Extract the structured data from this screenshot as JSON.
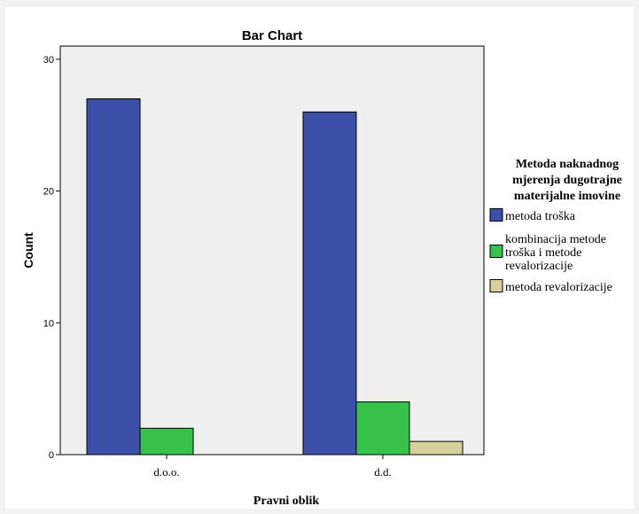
{
  "chart_data": {
    "type": "bar",
    "title": "Bar Chart",
    "xlabel": "Pravni oblik",
    "ylabel": "Count",
    "categories": [
      "d.o.o.",
      "d.d."
    ],
    "ylim": [
      0,
      31
    ],
    "yticks": [
      0,
      10,
      20,
      30
    ],
    "grid": false,
    "legend_position": "right",
    "legend_title": [
      "Metoda naknadnog",
      "mjerenja dugotrajne",
      "materijalne imovine"
    ],
    "series": [
      {
        "name": "metoda troška",
        "name_lines": [
          "metoda troška"
        ],
        "color": "#3c50aa",
        "values": [
          27,
          26
        ]
      },
      {
        "name": "kombinacija metode troška i metode revalorizacije",
        "name_lines": [
          "kombinacija metode",
          "troška i metode",
          "revalorizacije"
        ],
        "color": "#36c24b",
        "values": [
          2,
          4
        ]
      },
      {
        "name": "metoda revalorizacije",
        "name_lines": [
          "metoda revalorizacije"
        ],
        "color": "#d6cf9c",
        "values": [
          0,
          1
        ]
      }
    ],
    "plot_background": "#efefef"
  }
}
